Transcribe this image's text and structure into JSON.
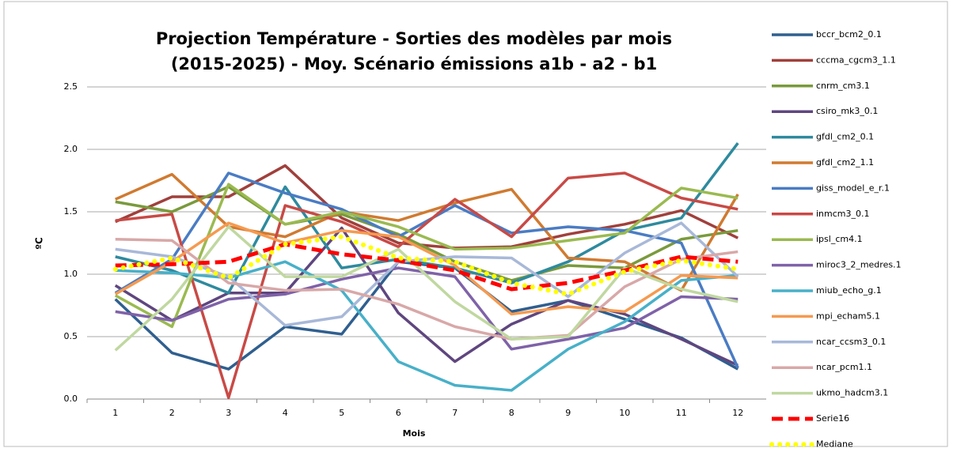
{
  "chart_data": {
    "type": "line",
    "title": [
      "Projection Température - Sorties des modèles par mois",
      "(2015-2025) - Moy. Scénario émissions a1b - a2 - b1"
    ],
    "x_label": "Mois",
    "y_label": "ºC",
    "categories": [
      "1",
      "2",
      "3",
      "4",
      "5",
      "6",
      "7",
      "8",
      "9",
      "10",
      "11",
      "12"
    ],
    "ylim": [
      0,
      2.5
    ],
    "yticks": [
      {
        "value": 0,
        "label": "0.0"
      },
      {
        "value": 0.5,
        "label": "0.5"
      },
      {
        "value": 1,
        "label": "1.0"
      },
      {
        "value": 1.5,
        "label": "1.5"
      },
      {
        "value": 2,
        "label": "2.0"
      },
      {
        "value": 2.5,
        "label": "2.5"
      }
    ],
    "grid": true,
    "legend": "right",
    "series": [
      {
        "name": "bccr_bcm2_0.1",
        "color": "#2f5f8f",
        "values": [
          0.8,
          0.37,
          0.24,
          0.58,
          0.52,
          1.1,
          1.05,
          0.7,
          0.79,
          0.64,
          0.49,
          0.24
        ]
      },
      {
        "name": "cccma_cgcm3_1.1",
        "color": "#a0403c",
        "values": [
          1.42,
          1.62,
          1.62,
          1.87,
          1.45,
          1.25,
          1.21,
          1.22,
          1.32,
          1.4,
          1.51,
          1.29
        ]
      },
      {
        "name": "cnrm_cm3.1",
        "color": "#7a9a3c",
        "values": [
          1.58,
          1.5,
          1.7,
          1.4,
          1.48,
          1.32,
          1.1,
          0.95,
          1.07,
          1.05,
          1.28,
          1.35
        ]
      },
      {
        "name": "csiro_mk3_0.1",
        "color": "#5f467f",
        "values": [
          0.91,
          0.63,
          0.85,
          0.85,
          1.37,
          0.69,
          0.3,
          0.6,
          0.79,
          0.68,
          0.48,
          0.27
        ]
      },
      {
        "name": "gfdl_cm2_0.1",
        "color": "#2e8a9e",
        "values": [
          1.14,
          1.03,
          0.85,
          1.7,
          1.05,
          1.12,
          1.05,
          0.93,
          1.1,
          1.35,
          1.45,
          2.05
        ]
      },
      {
        "name": "gfdl_cm2_1.1",
        "color": "#d07a30",
        "values": [
          1.6,
          1.8,
          1.38,
          1.3,
          1.5,
          1.43,
          1.57,
          1.68,
          1.13,
          1.1,
          0.87,
          1.64
        ]
      },
      {
        "name": "giss_model_e_r.1",
        "color": "#4a7cc4",
        "values": [
          0.85,
          1.12,
          1.81,
          1.65,
          1.52,
          1.3,
          1.55,
          1.33,
          1.38,
          1.35,
          1.25,
          0.25
        ]
      },
      {
        "name": "inmcm3_0.1",
        "color": "#c84a46",
        "values": [
          1.43,
          1.48,
          0.01,
          1.55,
          1.42,
          1.22,
          1.6,
          1.3,
          1.77,
          1.81,
          1.61,
          1.52
        ]
      },
      {
        "name": "ipsl_cm4.1",
        "color": "#9aba50",
        "values": [
          0.83,
          0.58,
          1.72,
          1.4,
          1.5,
          1.38,
          1.2,
          1.21,
          1.27,
          1.33,
          1.69,
          1.61
        ]
      },
      {
        "name": "miroc3_2_medres.1",
        "color": "#7f62a8",
        "values": [
          0.7,
          0.63,
          0.8,
          0.84,
          0.96,
          1.05,
          0.98,
          0.4,
          0.48,
          0.57,
          0.82,
          0.8
        ]
      },
      {
        "name": "miub_echo_g.1",
        "color": "#48b0c8",
        "values": [
          1.03,
          1.01,
          0.97,
          1.1,
          0.87,
          0.3,
          0.11,
          0.07,
          0.4,
          0.62,
          0.95,
          0.99
        ]
      },
      {
        "name": "mpi_echam5.1",
        "color": "#f59a50",
        "values": [
          0.84,
          1.1,
          1.41,
          1.25,
          1.35,
          1.3,
          1.07,
          0.68,
          0.74,
          0.7,
          0.99,
          0.97
        ]
      },
      {
        "name": "ncar_ccsm3_0.1",
        "color": "#a8b8d8",
        "values": [
          1.2,
          1.14,
          0.98,
          0.59,
          0.66,
          1.1,
          1.14,
          1.13,
          0.82,
          1.17,
          1.41,
          0.98
        ]
      },
      {
        "name": "ncar_pcm1.1",
        "color": "#d8a8a8",
        "values": [
          1.28,
          1.27,
          0.93,
          0.87,
          0.88,
          0.76,
          0.58,
          0.48,
          0.51,
          0.9,
          1.12,
          1.18
        ]
      },
      {
        "name": "ukmo_hadcm3.1",
        "color": "#c0d8a0",
        "values": [
          0.39,
          0.8,
          1.38,
          0.98,
          0.98,
          1.2,
          0.78,
          0.48,
          0.5,
          1.05,
          0.88,
          0.78
        ]
      },
      {
        "name": "Serie16",
        "color": "#ff0000",
        "style": "dashed",
        "values": [
          1.07,
          1.08,
          1.1,
          1.24,
          1.16,
          1.11,
          1.03,
          0.88,
          0.93,
          1.03,
          1.14,
          1.1
        ]
      },
      {
        "name": "Mediane",
        "color": "#ffff00",
        "style": "dotted",
        "values": [
          1.04,
          1.13,
          0.97,
          1.24,
          1.3,
          1.13,
          1.1,
          0.93,
          0.84,
          1.02,
          1.11,
          1.04
        ]
      }
    ]
  }
}
